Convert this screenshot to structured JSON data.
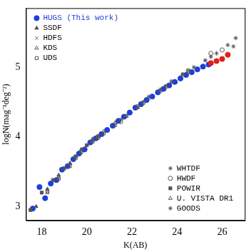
{
  "chart_data": {
    "type": "scatter",
    "x_label": "K(AB)",
    "y_label": "logN(mag⁻¹deg⁻²)",
    "xlim": [
      17.3,
      27
    ],
    "ylim": [
      2.8,
      5.85
    ],
    "xticks": [
      18,
      20,
      22,
      24,
      26
    ],
    "yticks": [
      3,
      4,
      5
    ],
    "grid": false,
    "legend": "upper left",
    "series": [
      {
        "name": "HUGS (This work)",
        "color": "#1f3fd6",
        "marker": "circle",
        "x": [
          17.6,
          17.9,
          18.15,
          18.4,
          18.65,
          18.9,
          19.15,
          19.4,
          19.65,
          19.9,
          20.15,
          20.4,
          20.65,
          20.9,
          21.15,
          21.4,
          21.65,
          21.9,
          22.15,
          22.4,
          22.65,
          22.9,
          23.15,
          23.4,
          23.65,
          23.9,
          24.15,
          24.4,
          24.65,
          24.9,
          25.15,
          25.4
        ],
        "values": [
          2.97,
          3.28,
          3.12,
          3.33,
          3.38,
          3.53,
          3.58,
          3.68,
          3.76,
          3.82,
          3.92,
          3.98,
          4.04,
          4.1,
          4.16,
          4.23,
          4.29,
          4.35,
          4.42,
          4.47,
          4.53,
          4.58,
          4.64,
          4.69,
          4.74,
          4.79,
          4.84,
          4.89,
          4.93,
          4.97,
          5.01,
          5.04
        ]
      },
      {
        "name": "SSDF",
        "color": "#555555",
        "marker": "triangle",
        "x": [
          17.75,
          18.25,
          18.75,
          19.25,
          19.75,
          20.25
        ],
        "values": [
          3.0,
          3.25,
          3.45,
          3.62,
          3.82,
          3.95
        ]
      },
      {
        "name": "HDFS",
        "color": "#555555",
        "marker": "cross",
        "x": [
          22.25,
          22.75,
          23.25,
          23.75,
          24.25,
          24.75,
          25.25
        ],
        "values": [
          4.43,
          4.55,
          4.66,
          4.78,
          4.89,
          5.0,
          5.1
        ]
      },
      {
        "name": "KDS",
        "color": "#555555",
        "marker": "triangle_open",
        "x": [
          20.25,
          21.25,
          22.25,
          23.25,
          24.25
        ],
        "values": [
          3.97,
          4.2,
          4.42,
          4.66,
          4.9
        ]
      },
      {
        "name": "UDS",
        "color": "#555555",
        "marker": "square_open",
        "x": [
          18.25,
          18.75,
          19.25,
          19.75,
          20.25,
          20.75,
          21.25,
          21.75,
          22.25
        ],
        "values": [
          3.22,
          3.4,
          3.58,
          3.78,
          3.93,
          4.05,
          4.17,
          4.3,
          4.44
        ]
      },
      {
        "name": "WHTDF",
        "color": "#555555",
        "marker": "star",
        "x": [
          20.5,
          21.5,
          22.5,
          23.5,
          24.5,
          25.5,
          26.5
        ],
        "values": [
          4.0,
          4.25,
          4.5,
          4.73,
          4.95,
          5.15,
          5.3
        ]
      },
      {
        "name": "HWDF",
        "color": "#555555",
        "marker": "circle_open",
        "x": [
          19.5,
          20.5,
          21.5,
          22.5,
          23.5,
          24.5,
          25.5,
          26.0
        ],
        "values": [
          3.7,
          3.99,
          4.22,
          4.49,
          4.72,
          4.95,
          5.2,
          5.25
        ]
      },
      {
        "name": "POWIR",
        "color": "#555555",
        "marker": "square",
        "x": [
          17.5,
          18.0,
          18.5,
          19.0,
          19.5,
          20.0,
          20.5
        ],
        "values": [
          2.95,
          3.2,
          3.38,
          3.55,
          3.72,
          3.88,
          4.01
        ]
      },
      {
        "name": "U. VISTA DR1",
        "color": "#555555",
        "marker": "triangle_open",
        "x": [
          18.25,
          18.75,
          19.25,
          19.75,
          20.25,
          20.75,
          21.25,
          21.75
        ],
        "values": [
          3.2,
          3.42,
          3.62,
          3.8,
          3.96,
          4.08,
          4.2,
          4.3
        ]
      },
      {
        "name": "GOODS",
        "color": "#555555",
        "marker": "star",
        "x": [
          22.75,
          23.25,
          23.75,
          24.25,
          24.75,
          25.25,
          25.75,
          26.25,
          26.6
        ],
        "values": [
          4.58,
          4.68,
          4.8,
          4.9,
          5.0,
          5.1,
          5.2,
          5.32,
          5.42
        ]
      },
      {
        "color": "#e0201a",
        "marker": "circle",
        "x": [
          25.5,
          25.75,
          26.0,
          26.25
        ],
        "values": [
          5.06,
          5.09,
          5.12,
          5.18
        ]
      }
    ]
  }
}
